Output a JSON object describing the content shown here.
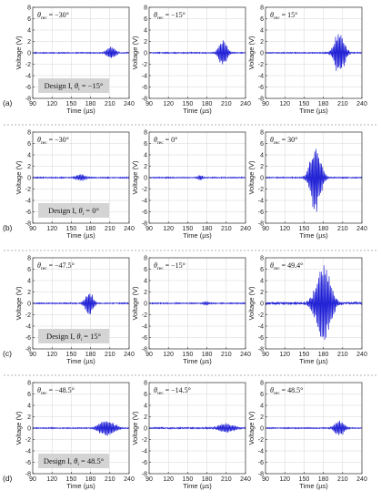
{
  "figure": {
    "rows": [
      {
        "label": "(a)",
        "design": "Design I, θi = −15°"
      },
      {
        "label": "(b)",
        "design": "Design I, θi = 0°"
      },
      {
        "label": "(c)",
        "design": "Design I, θi = 15°"
      },
      {
        "label": "(d)",
        "design": "Design I, θi = 48.5°"
      }
    ]
  },
  "chart_data": [
    {
      "type": "line",
      "panel": "a1",
      "annotation": "θrec = −30°",
      "xlabel": "Time (µs)",
      "ylabel": "Voltage (V)",
      "xlim": [
        90,
        240
      ],
      "ylim": [
        -8,
        8
      ],
      "xticks": [
        90,
        120,
        150,
        180,
        210,
        240
      ],
      "yticks": [
        -8,
        -6,
        -4,
        -2,
        0,
        2,
        4,
        6,
        8
      ],
      "grid": true,
      "series": [
        {
          "color": "#1f1fd6",
          "burst_center": 212,
          "burst_halfwidth": 12,
          "amplitude": 1.3,
          "noise": 0.07
        }
      ]
    },
    {
      "type": "line",
      "panel": "a2",
      "annotation": "θrec = −15°",
      "xlabel": "Time (µs)",
      "ylabel": "Voltage (V)",
      "xlim": [
        90,
        240
      ],
      "ylim": [
        -8,
        8
      ],
      "xticks": [
        90,
        120,
        150,
        180,
        210,
        240
      ],
      "yticks": [
        -8,
        -6,
        -4,
        -2,
        0,
        2,
        4,
        6,
        8
      ],
      "grid": true,
      "series": [
        {
          "color": "#1f1fd6",
          "burst_center": 205,
          "burst_halfwidth": 12,
          "amplitude": 2.6,
          "noise": 0.07
        }
      ]
    },
    {
      "type": "line",
      "panel": "a3",
      "annotation": "θrec = 15°",
      "xlabel": "Time (µs)",
      "ylabel": "Voltage (V)",
      "xlim": [
        90,
        240
      ],
      "ylim": [
        -8,
        8
      ],
      "xticks": [
        90,
        120,
        150,
        180,
        210,
        240
      ],
      "yticks": [
        -8,
        -6,
        -4,
        -2,
        0,
        2,
        4,
        6,
        8
      ],
      "grid": true,
      "series": [
        {
          "color": "#1f1fd6",
          "burst_center": 205,
          "burst_halfwidth": 14,
          "amplitude": 4.4,
          "noise": 0.07
        }
      ]
    },
    {
      "type": "line",
      "panel": "b1",
      "annotation": "θrec = −30°",
      "xlabel": "Time (µs)",
      "ylabel": "Voltage (V)",
      "xlim": [
        90,
        240
      ],
      "ylim": [
        -8,
        8
      ],
      "xticks": [
        90,
        120,
        150,
        180,
        210,
        240
      ],
      "yticks": [
        -8,
        -6,
        -4,
        -2,
        0,
        2,
        4,
        6,
        8
      ],
      "grid": true,
      "series": [
        {
          "color": "#1f1fd6",
          "burst_center": 165,
          "burst_halfwidth": 14,
          "amplitude": 0.6,
          "noise": 0.07
        }
      ]
    },
    {
      "type": "line",
      "panel": "b2",
      "annotation": "θrec = 0°",
      "xlabel": "Time (µs)",
      "ylabel": "Voltage (V)",
      "xlim": [
        90,
        240
      ],
      "ylim": [
        -8,
        8
      ],
      "xticks": [
        90,
        120,
        150,
        180,
        210,
        240
      ],
      "yticks": [
        -8,
        -6,
        -4,
        -2,
        0,
        2,
        4,
        6,
        8
      ],
      "grid": true,
      "series": [
        {
          "color": "#1f1fd6",
          "burst_center": 170,
          "burst_halfwidth": 8,
          "amplitude": 0.5,
          "noise": 0.07
        }
      ]
    },
    {
      "type": "line",
      "panel": "b3",
      "annotation": "θrec = 30°",
      "xlabel": "Time (µs)",
      "ylabel": "Voltage (V)",
      "xlim": [
        90,
        240
      ],
      "ylim": [
        -8,
        8
      ],
      "xticks": [
        90,
        120,
        150,
        180,
        210,
        240
      ],
      "yticks": [
        -8,
        -6,
        -4,
        -2,
        0,
        2,
        4,
        6,
        8
      ],
      "grid": true,
      "series": [
        {
          "color": "#1f1fd6",
          "burst_center": 168,
          "burst_halfwidth": 15,
          "amplitude": 6.8,
          "noise": 0.07
        }
      ]
    },
    {
      "type": "line",
      "panel": "c1",
      "annotation": "θrec = −47.5°",
      "xlabel": "Time (µs)",
      "ylabel": "Voltage (V)",
      "xlim": [
        90,
        240
      ],
      "ylim": [
        -8,
        8
      ],
      "xticks": [
        90,
        120,
        150,
        180,
        210,
        240
      ],
      "yticks": [
        -8,
        -6,
        -4,
        -2,
        0,
        2,
        4,
        6,
        8
      ],
      "grid": true,
      "series": [
        {
          "color": "#1f1fd6",
          "burst_center": 178,
          "burst_halfwidth": 12,
          "amplitude": 2.2,
          "noise": 0.07
        }
      ]
    },
    {
      "type": "line",
      "panel": "c2",
      "annotation": "θrec = −15°",
      "xlabel": "Time (µs)",
      "ylabel": "Voltage (V)",
      "xlim": [
        90,
        240
      ],
      "ylim": [
        -8,
        8
      ],
      "xticks": [
        90,
        120,
        150,
        180,
        210,
        240
      ],
      "yticks": [
        -8,
        -6,
        -4,
        -2,
        0,
        2,
        4,
        6,
        8
      ],
      "grid": true,
      "series": [
        {
          "color": "#1f1fd6",
          "burst_center": 178,
          "burst_halfwidth": 8,
          "amplitude": 0.35,
          "noise": 0.07
        }
      ]
    },
    {
      "type": "line",
      "panel": "c3",
      "annotation": "θrec = 49.4°",
      "xlabel": "Time (µs)",
      "ylabel": "Voltage (V)",
      "xlim": [
        90,
        240
      ],
      "ylim": [
        -8,
        8
      ],
      "xticks": [
        90,
        120,
        150,
        180,
        210,
        240
      ],
      "yticks": [
        -8,
        -6,
        -4,
        -2,
        0,
        2,
        4,
        6,
        8
      ],
      "grid": true,
      "series": [
        {
          "color": "#1f1fd6",
          "burst_center": 180,
          "burst_halfwidth": 22,
          "amplitude": 7.0,
          "noise": 0.2
        }
      ]
    },
    {
      "type": "line",
      "panel": "d1",
      "annotation": "θrec = −48.5°",
      "xlabel": "Time (µs)",
      "ylabel": "Voltage (V)",
      "xlim": [
        90,
        240
      ],
      "ylim": [
        -8,
        8
      ],
      "xticks": [
        90,
        120,
        150,
        180,
        210,
        240
      ],
      "yticks": [
        -8,
        -6,
        -4,
        -2,
        0,
        2,
        4,
        6,
        8
      ],
      "grid": true,
      "series": [
        {
          "color": "#1f1fd6",
          "burst_center": 205,
          "burst_halfwidth": 22,
          "amplitude": 1.6,
          "noise": 0.07
        }
      ]
    },
    {
      "type": "line",
      "panel": "d2",
      "annotation": "θrec = −14.5°",
      "xlabel": "Time (µs)",
      "ylabel": "Voltage (V)",
      "xlim": [
        90,
        240
      ],
      "ylim": [
        -8,
        8
      ],
      "xticks": [
        90,
        120,
        150,
        180,
        210,
        240
      ],
      "yticks": [
        -8,
        -6,
        -4,
        -2,
        0,
        2,
        4,
        6,
        8
      ],
      "grid": true,
      "series": [
        {
          "color": "#1f1fd6",
          "burst_center": 210,
          "burst_halfwidth": 22,
          "amplitude": 0.9,
          "noise": 0.1
        }
      ]
    },
    {
      "type": "line",
      "panel": "d3",
      "annotation": "θrec = 48.5°",
      "xlabel": "Time (µs)",
      "ylabel": "Voltage (V)",
      "xlim": [
        90,
        240
      ],
      "ylim": [
        -8,
        8
      ],
      "xticks": [
        90,
        120,
        150,
        180,
        210,
        240
      ],
      "yticks": [
        -8,
        -6,
        -4,
        -2,
        0,
        2,
        4,
        6,
        8
      ],
      "grid": true,
      "series": [
        {
          "color": "#1f1fd6",
          "burst_center": 205,
          "burst_halfwidth": 14,
          "amplitude": 1.5,
          "noise": 0.07
        }
      ]
    }
  ]
}
